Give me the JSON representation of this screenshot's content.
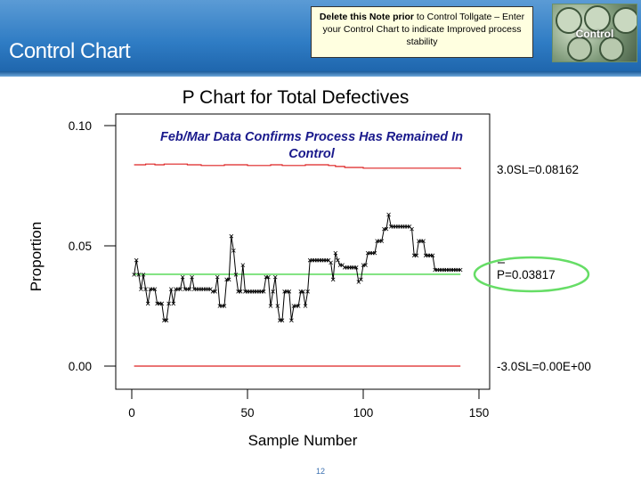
{
  "slide": {
    "title": "Control Chart",
    "page_number": "12"
  },
  "note": {
    "bold": "Delete this Note prior",
    "rest": " to Control Tollgate – Enter your Control Chart to indicate Improved process stability"
  },
  "thumbnail": {
    "label": "Control",
    "icon": "gauges-photo-icon"
  },
  "colors": {
    "header": "#2f7cc4",
    "center_line": "#66dd66",
    "limit_line": "#dd2222",
    "data_line": "#000000",
    "annotation": "#1a1a8c",
    "highlight_ellipse": "#66dd66"
  },
  "chart_data": {
    "type": "line",
    "title": "P Chart for Total Defectives",
    "xlabel": "Sample Number",
    "ylabel": "Proportion",
    "xlim": [
      0,
      150
    ],
    "ylim": [
      0.0,
      0.1
    ],
    "xticks": [
      "0",
      "50",
      "100",
      "150"
    ],
    "yticks": [
      "0.00",
      "0.05",
      "0.10"
    ],
    "annotation": "Feb/Mar Data Confirms Process Has Remained In Control",
    "limit_labels": {
      "ucl": "3.0SL=0.08162",
      "center": "P=0.03817",
      "lcl": "-3.0SL=0.00E+00"
    },
    "center_line": 0.03817,
    "lcl": 0.0,
    "ucl": {
      "x": [
        1,
        6,
        10,
        14,
        24,
        30,
        40,
        50,
        60,
        65,
        75,
        85,
        88,
        92,
        100,
        142
      ],
      "y": [
        0.0837,
        0.084,
        0.0837,
        0.084,
        0.0837,
        0.0834,
        0.0837,
        0.0834,
        0.0837,
        0.0834,
        0.0837,
        0.0834,
        0.083,
        0.0826,
        0.0823,
        0.0819
      ]
    },
    "series": [
      {
        "x": [
          1,
          2,
          3,
          4,
          5,
          6,
          7,
          8,
          9,
          10,
          11,
          12,
          13,
          14,
          15,
          16,
          17,
          18,
          19,
          20,
          21,
          22,
          23,
          24,
          25,
          26,
          27,
          28,
          29,
          30,
          31,
          32,
          33,
          34,
          35,
          36,
          37,
          38,
          39,
          40,
          41,
          42,
          43,
          44,
          45,
          46,
          47,
          48,
          49,
          50,
          51,
          52,
          53,
          54,
          55,
          56,
          57,
          58,
          59,
          60,
          61,
          62,
          63,
          64,
          65,
          66,
          67,
          68,
          69,
          70,
          71,
          72,
          73,
          74,
          75,
          76,
          77,
          78,
          79,
          80,
          81,
          82,
          83,
          84,
          85,
          86,
          87,
          88,
          89,
          90,
          91,
          92,
          93,
          94,
          95,
          96,
          97,
          98,
          99,
          100,
          101,
          102,
          103,
          104,
          105,
          106,
          107,
          108,
          109,
          110,
          111,
          112,
          113,
          114,
          115,
          116,
          117,
          118,
          119,
          120,
          121,
          122,
          123,
          124,
          125,
          126,
          127,
          128,
          129,
          130,
          131,
          132,
          133,
          134,
          135,
          136,
          137,
          138,
          139,
          140,
          141,
          142
        ],
        "y": [
          0.038,
          0.044,
          0.038,
          0.032,
          0.038,
          0.032,
          0.026,
          0.032,
          0.032,
          0.032,
          0.026,
          0.026,
          0.026,
          0.019,
          0.019,
          0.026,
          0.032,
          0.026,
          0.032,
          0.032,
          0.032,
          0.037,
          0.032,
          0.032,
          0.032,
          0.037,
          0.032,
          0.032,
          0.032,
          0.032,
          0.032,
          0.032,
          0.032,
          0.032,
          0.031,
          0.031,
          0.037,
          0.025,
          0.025,
          0.025,
          0.036,
          0.036,
          0.054,
          0.048,
          0.038,
          0.031,
          0.031,
          0.042,
          0.031,
          0.031,
          0.031,
          0.031,
          0.031,
          0.031,
          0.031,
          0.031,
          0.031,
          0.037,
          0.037,
          0.025,
          0.031,
          0.037,
          0.025,
          0.019,
          0.019,
          0.031,
          0.031,
          0.031,
          0.019,
          0.025,
          0.025,
          0.025,
          0.031,
          0.031,
          0.025,
          0.031,
          0.044,
          0.044,
          0.044,
          0.044,
          0.044,
          0.044,
          0.044,
          0.044,
          0.044,
          0.043,
          0.036,
          0.047,
          0.044,
          0.042,
          0.042,
          0.041,
          0.041,
          0.041,
          0.041,
          0.041,
          0.041,
          0.035,
          0.036,
          0.042,
          0.042,
          0.047,
          0.047,
          0.047,
          0.047,
          0.052,
          0.052,
          0.052,
          0.057,
          0.057,
          0.063,
          0.058,
          0.058,
          0.058,
          0.058,
          0.058,
          0.058,
          0.058,
          0.058,
          0.058,
          0.057,
          0.046,
          0.046,
          0.052,
          0.052,
          0.052,
          0.046,
          0.046,
          0.046,
          0.046,
          0.04,
          0.04,
          0.04,
          0.04,
          0.04,
          0.04,
          0.04,
          0.04,
          0.04,
          0.04,
          0.04,
          0.04
        ]
      }
    ]
  }
}
